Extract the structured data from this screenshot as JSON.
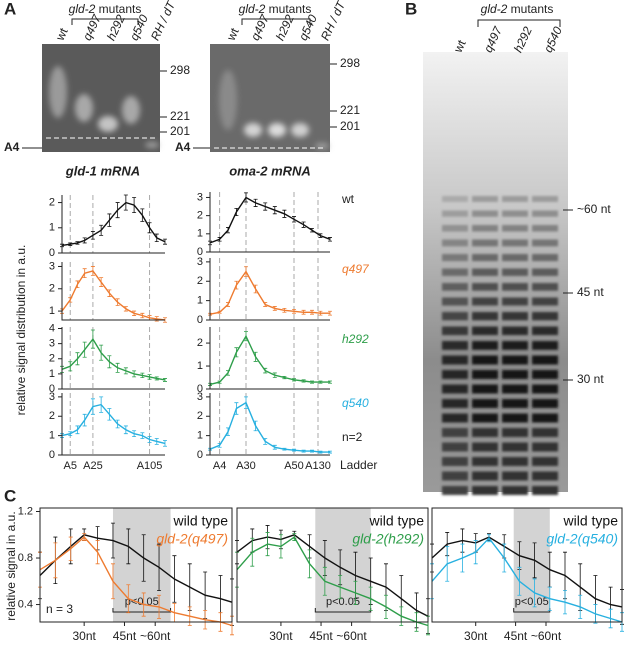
{
  "panel_labels": [
    "A",
    "B",
    "C"
  ],
  "panel_a": {
    "group_gene": "gld-2",
    "group_word": "mutants",
    "lanes": [
      "wt",
      "q497",
      "h292",
      "q540",
      "RH / dT"
    ],
    "left_gel": {
      "markers": [
        298,
        221,
        201
      ],
      "anchor": "A4",
      "title": "gld-1 mRNA"
    },
    "right_gel": {
      "markers": [
        298,
        221,
        201
      ],
      "anchor": "A4",
      "title": "oma-2 mRNA"
    },
    "rows": [
      "wt",
      "q497",
      "h292",
      "q540",
      "n=2"
    ],
    "y_label": "relative signal distribution in a.u.",
    "x_label": "Ladder"
  },
  "panel_b": {
    "group_gene": "gld-2",
    "group_word": "mutants",
    "lanes": [
      "wt",
      "q497",
      "h292",
      "q540"
    ],
    "markers": [
      "~60 nt",
      "45 nt",
      "30 nt"
    ]
  },
  "panel_c": {
    "y_label": "relative signal in a.u."
  },
  "chart_data": [
    {
      "type": "line",
      "x": [
        0,
        8,
        15,
        22,
        30,
        38,
        46,
        54,
        62,
        70,
        78,
        85,
        92,
        100
      ],
      "xlim": [
        0,
        100
      ],
      "xticks": [
        8,
        30,
        85
      ],
      "vlines": true,
      "ylim": [
        0,
        2.3
      ],
      "yticks": [
        0,
        1,
        2
      ],
      "series": [
        {
          "color": "#111111",
          "values": [
            0.3,
            0.35,
            0.4,
            0.5,
            0.7,
            0.9,
            1.3,
            1.7,
            2.0,
            1.9,
            1.5,
            1.0,
            0.6,
            0.45
          ],
          "errors": [
            0.05,
            0.05,
            0.05,
            0.1,
            0.15,
            0.2,
            0.25,
            0.3,
            0.3,
            0.3,
            0.25,
            0.2,
            0.15,
            0.1
          ]
        }
      ]
    },
    {
      "type": "line",
      "x": [
        0,
        8,
        15,
        22,
        30,
        38,
        46,
        54,
        62,
        70,
        78,
        85,
        92,
        100
      ],
      "xlim": [
        0,
        100
      ],
      "xticks": [
        8,
        30,
        85
      ],
      "vlines": true,
      "ylim": [
        0.6,
        3.2
      ],
      "yticks": [
        1,
        2,
        3
      ],
      "series": [
        {
          "color": "#ee7b30",
          "values": [
            1.0,
            1.5,
            2.2,
            2.7,
            2.8,
            2.3,
            1.8,
            1.4,
            1.1,
            0.9,
            0.8,
            0.7,
            0.65,
            0.6
          ],
          "errors": [
            0.1,
            0.1,
            0.15,
            0.2,
            0.2,
            0.2,
            0.15,
            0.15,
            0.1,
            0.1,
            0.1,
            0.1,
            0.1,
            0.1
          ]
        }
      ]
    },
    {
      "type": "line",
      "x": [
        0,
        8,
        15,
        22,
        30,
        38,
        46,
        54,
        62,
        70,
        78,
        85,
        92,
        100
      ],
      "xlim": [
        0,
        100
      ],
      "xticks": [
        8,
        30,
        85
      ],
      "vlines": true,
      "ylim": [
        0,
        4.1
      ],
      "yticks": [
        0,
        1,
        2,
        3,
        4
      ],
      "series": [
        {
          "color": "#2e9e4a",
          "values": [
            1.3,
            1.5,
            2.0,
            2.6,
            3.3,
            2.4,
            1.8,
            1.4,
            1.2,
            1.0,
            0.9,
            0.8,
            0.7,
            0.6
          ],
          "errors": [
            0.2,
            0.3,
            0.4,
            0.5,
            0.6,
            0.5,
            0.4,
            0.3,
            0.2,
            0.2,
            0.15,
            0.15,
            0.1,
            0.1
          ]
        }
      ]
    },
    {
      "type": "line",
      "x": [
        0,
        8,
        15,
        22,
        30,
        38,
        46,
        54,
        62,
        70,
        78,
        85,
        92,
        100
      ],
      "xlim": [
        0,
        100
      ],
      "xticks": [
        {
          "value": 8,
          "label": "A5"
        },
        {
          "value": 30,
          "label": "A25"
        },
        {
          "value": 85,
          "label": "A105"
        }
      ],
      "vlines": true,
      "ylim": [
        0,
        3.2
      ],
      "yticks": [
        0,
        1,
        2,
        3
      ],
      "series": [
        {
          "color": "#27b0e0",
          "values": [
            1.0,
            1.1,
            1.3,
            1.8,
            2.5,
            2.6,
            2.1,
            1.6,
            1.3,
            1.1,
            1.0,
            0.8,
            0.7,
            0.6
          ],
          "errors": [
            0.1,
            0.1,
            0.2,
            0.3,
            0.4,
            0.4,
            0.3,
            0.2,
            0.2,
            0.15,
            0.15,
            0.15,
            0.15,
            0.15
          ]
        }
      ]
    },
    {
      "type": "line",
      "x": [
        0,
        8,
        15,
        22,
        30,
        38,
        46,
        54,
        62,
        70,
        78,
        85,
        92,
        100
      ],
      "xlim": [
        0,
        100
      ],
      "xticks": [
        8,
        30,
        70,
        90
      ],
      "vlines": true,
      "ylim": [
        0,
        3.3
      ],
      "yticks": [
        0,
        1,
        2,
        3
      ],
      "series": [
        {
          "color": "#111111",
          "values": [
            0.5,
            0.7,
            1.2,
            2.2,
            3.0,
            2.7,
            2.5,
            2.3,
            2.1,
            1.8,
            1.5,
            1.2,
            0.9,
            0.7
          ],
          "errors": [
            0.1,
            0.1,
            0.15,
            0.2,
            0.25,
            0.2,
            0.2,
            0.2,
            0.2,
            0.15,
            0.15,
            0.1,
            0.1,
            0.1
          ]
        }
      ]
    },
    {
      "type": "line",
      "x": [
        0,
        8,
        15,
        22,
        30,
        38,
        46,
        54,
        62,
        70,
        78,
        85,
        92,
        100
      ],
      "xlim": [
        0,
        100
      ],
      "xticks": [
        8,
        30,
        70,
        90
      ],
      "vlines": true,
      "ylim": [
        0,
        3.2
      ],
      "yticks": [
        0,
        1,
        2,
        3
      ],
      "series": [
        {
          "color": "#ee7b30",
          "values": [
            0.3,
            0.4,
            0.8,
            1.8,
            2.5,
            1.6,
            0.8,
            0.6,
            0.5,
            0.45,
            0.4,
            0.4,
            0.35,
            0.35
          ],
          "errors": [
            0.05,
            0.05,
            0.1,
            0.2,
            0.25,
            0.2,
            0.1,
            0.1,
            0.1,
            0.1,
            0.1,
            0.1,
            0.1,
            0.1
          ]
        }
      ]
    },
    {
      "type": "line",
      "x": [
        0,
        8,
        15,
        22,
        30,
        38,
        46,
        54,
        62,
        70,
        78,
        85,
        92,
        100
      ],
      "xlim": [
        0,
        100
      ],
      "xticks": [
        8,
        30,
        70,
        90
      ],
      "vlines": true,
      "ylim": [
        0,
        2.7
      ],
      "yticks": [
        0,
        1,
        2
      ],
      "series": [
        {
          "color": "#2e9e4a",
          "values": [
            0.2,
            0.3,
            0.7,
            1.6,
            2.3,
            1.4,
            0.8,
            0.6,
            0.5,
            0.4,
            0.35,
            0.3,
            0.3,
            0.3
          ],
          "errors": [
            0.05,
            0.05,
            0.1,
            0.2,
            0.2,
            0.2,
            0.1,
            0.1,
            0.05,
            0.05,
            0.05,
            0.05,
            0.05,
            0.05
          ]
        }
      ]
    },
    {
      "type": "line",
      "x": [
        0,
        8,
        15,
        22,
        30,
        38,
        46,
        54,
        62,
        70,
        78,
        85,
        92,
        100
      ],
      "xlim": [
        0,
        100
      ],
      "xticks": [
        {
          "value": 8,
          "label": "A4"
        },
        {
          "value": 30,
          "label": "A30"
        },
        {
          "value": 70,
          "label": "A50"
        },
        {
          "value": 90,
          "label": "A130"
        }
      ],
      "vlines": true,
      "ylim": [
        0,
        3.2
      ],
      "yticks": [
        0,
        1,
        2,
        3
      ],
      "series": [
        {
          "color": "#27b0e0",
          "values": [
            0.3,
            0.5,
            1.2,
            2.4,
            2.7,
            1.5,
            0.7,
            0.4,
            0.3,
            0.25,
            0.2,
            0.2,
            0.15,
            0.15
          ],
          "errors": [
            0.05,
            0.1,
            0.2,
            0.3,
            0.3,
            0.25,
            0.15,
            0.1,
            0.05,
            0.05,
            0.05,
            0.05,
            0.05,
            0.05
          ]
        }
      ]
    },
    {
      "type": "line",
      "box": true,
      "x": [
        0,
        8,
        16,
        23,
        30,
        38,
        46,
        54,
        62,
        70,
        78,
        86,
        94,
        100
      ],
      "xlim": [
        0,
        100
      ],
      "xticks": [
        {
          "value": 23,
          "label": "30nt"
        },
        {
          "value": 44,
          "label": "45nt"
        },
        {
          "value": 60,
          "label": "~60nt"
        }
      ],
      "ylim": [
        0.25,
        1.23
      ],
      "yticks": [
        0.4,
        0.8,
        1.2
      ],
      "highlight": [
        38,
        68
      ],
      "annotation": "p<0.05",
      "note": "n = 3",
      "series": [
        {
          "name": "wild type",
          "color": "#111111",
          "values": [
            0.65,
            0.78,
            0.9,
            1.0,
            0.97,
            0.95,
            0.9,
            0.8,
            0.72,
            0.62,
            0.55,
            0.48,
            0.45,
            0.42
          ],
          "errors": [
            0.2,
            0.2,
            0.15,
            0.05,
            0.1,
            0.15,
            0.15,
            0.2,
            0.2,
            0.2,
            0.2,
            0.2,
            0.2,
            0.2
          ]
        },
        {
          "name": "gld-2(q497)",
          "color": "#ee7b30",
          "values": [
            0.7,
            0.78,
            0.88,
            0.98,
            0.85,
            0.6,
            0.45,
            0.4,
            0.38,
            0.33,
            0.3,
            0.27,
            0.25,
            0.22
          ],
          "errors": [
            0.15,
            0.15,
            0.1,
            0.03,
            0.1,
            0.15,
            0.12,
            0.1,
            0.1,
            0.08,
            0.08,
            0.08,
            0.08,
            0.08
          ]
        }
      ]
    },
    {
      "type": "line",
      "box": true,
      "x": [
        0,
        8,
        16,
        23,
        30,
        38,
        46,
        54,
        62,
        70,
        78,
        86,
        94,
        100
      ],
      "xlim": [
        0,
        100
      ],
      "xticks": [
        {
          "value": 23,
          "label": "30nt"
        },
        {
          "value": 44,
          "label": "45nt"
        },
        {
          "value": 60,
          "label": "~60nt"
        }
      ],
      "ylim": [
        0.25,
        1.23
      ],
      "highlight": [
        41,
        70
      ],
      "annotation": "p<0.05",
      "series": [
        {
          "name": "wild type",
          "color": "#111111",
          "values": [
            0.85,
            0.95,
            0.98,
            0.96,
            1.0,
            0.9,
            0.8,
            0.72,
            0.65,
            0.6,
            0.55,
            0.45,
            0.35,
            0.3
          ],
          "errors": [
            0.1,
            0.1,
            0.1,
            0.08,
            0.03,
            0.1,
            0.15,
            0.15,
            0.2,
            0.2,
            0.2,
            0.2,
            0.15,
            0.15
          ]
        },
        {
          "name": "gld-2(h292)",
          "color": "#2e9e4a",
          "values": [
            0.7,
            0.85,
            0.92,
            0.9,
            0.98,
            0.75,
            0.6,
            0.55,
            0.5,
            0.45,
            0.38,
            0.3,
            0.25,
            0.22
          ],
          "errors": [
            0.15,
            0.12,
            0.1,
            0.1,
            0.03,
            0.12,
            0.12,
            0.1,
            0.1,
            0.1,
            0.1,
            0.08,
            0.08,
            0.08
          ]
        }
      ]
    },
    {
      "type": "line",
      "box": true,
      "x": [
        0,
        8,
        16,
        23,
        30,
        38,
        46,
        54,
        62,
        70,
        78,
        86,
        94,
        100
      ],
      "xlim": [
        0,
        100
      ],
      "xticks": [
        {
          "value": 23,
          "label": "30nt"
        },
        {
          "value": 44,
          "label": "45nt"
        },
        {
          "value": 60,
          "label": "~60nt"
        }
      ],
      "ylim": [
        0.25,
        1.23
      ],
      "highlight": [
        43,
        62
      ],
      "annotation": "p<0.05",
      "series": [
        {
          "name": "wild type",
          "color": "#111111",
          "values": [
            0.8,
            0.92,
            0.95,
            0.93,
            0.98,
            0.9,
            0.82,
            0.78,
            0.7,
            0.65,
            0.55,
            0.45,
            0.4,
            0.38
          ],
          "errors": [
            0.12,
            0.1,
            0.1,
            0.08,
            0.03,
            0.1,
            0.12,
            0.15,
            0.15,
            0.2,
            0.2,
            0.2,
            0.15,
            0.15
          ]
        },
        {
          "name": "gld-2(q540)",
          "color": "#27b0e0",
          "values": [
            0.6,
            0.75,
            0.8,
            0.85,
            0.97,
            0.8,
            0.6,
            0.5,
            0.45,
            0.42,
            0.38,
            0.32,
            0.28,
            0.25
          ],
          "errors": [
            0.15,
            0.15,
            0.12,
            0.1,
            0.03,
            0.12,
            0.12,
            0.12,
            0.1,
            0.1,
            0.1,
            0.08,
            0.08,
            0.08
          ]
        }
      ]
    }
  ]
}
